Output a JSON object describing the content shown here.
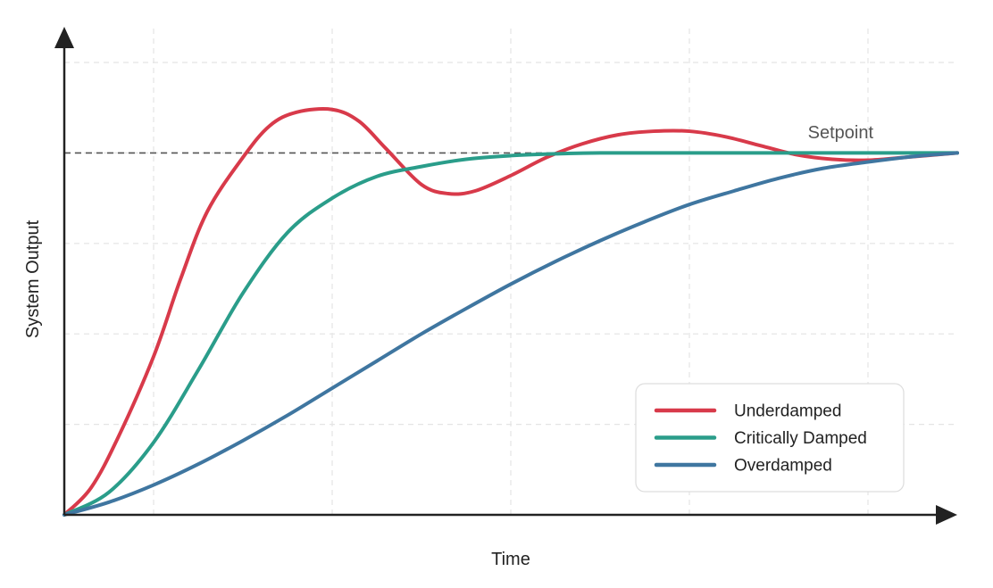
{
  "chart_data": {
    "type": "line",
    "title": "",
    "xlabel": "Time",
    "ylabel": "System Output",
    "xlim": [
      0,
      10
    ],
    "ylim": [
      0,
      5
    ],
    "grid": true,
    "grid_x": [
      1,
      3,
      5,
      7,
      9
    ],
    "grid_y": [
      1,
      2,
      3,
      4,
      5
    ],
    "legend_position": "bottom-right",
    "setpoint": {
      "label": "Setpoint",
      "value": 4
    },
    "series": [
      {
        "name": "Underdamped",
        "color": "#d83a4a",
        "x": [
          0,
          0.3,
          0.6,
          1.0,
          1.3,
          1.6,
          2.0,
          2.3,
          2.6,
          3.0,
          3.3,
          3.6,
          4.0,
          4.3,
          4.6,
          5.0,
          5.4,
          5.8,
          6.2,
          6.6,
          7.0,
          7.4,
          7.8,
          8.2,
          8.6,
          9.0,
          9.4,
          10.0
        ],
        "y": [
          0,
          0.3,
          0.85,
          1.75,
          2.6,
          3.35,
          3.95,
          4.3,
          4.45,
          4.48,
          4.35,
          4.05,
          3.65,
          3.55,
          3.58,
          3.75,
          3.95,
          4.1,
          4.2,
          4.24,
          4.24,
          4.18,
          4.08,
          3.98,
          3.93,
          3.92,
          3.95,
          4.0
        ]
      },
      {
        "name": "Critically Damped",
        "color": "#2a9d8a",
        "x": [
          0,
          0.5,
          1.0,
          1.5,
          2.0,
          2.5,
          3.0,
          3.5,
          4.0,
          4.5,
          5.0,
          5.5,
          6.0,
          7.0,
          8.0,
          9.0,
          10.0
        ],
        "y": [
          0,
          0.25,
          0.8,
          1.6,
          2.45,
          3.12,
          3.5,
          3.74,
          3.85,
          3.93,
          3.97,
          3.99,
          4.0,
          4.0,
          4.0,
          4.0,
          4.0
        ]
      },
      {
        "name": "Overdamped",
        "color": "#3f76a0",
        "x": [
          0,
          0.5,
          1.0,
          1.5,
          2.0,
          2.5,
          3.0,
          3.5,
          4.0,
          4.5,
          5.0,
          5.5,
          6.0,
          6.5,
          7.0,
          7.5,
          8.0,
          8.5,
          9.0,
          9.5,
          10.0
        ],
        "y": [
          0,
          0.14,
          0.33,
          0.56,
          0.82,
          1.1,
          1.4,
          1.7,
          2.0,
          2.28,
          2.55,
          2.8,
          3.03,
          3.24,
          3.43,
          3.58,
          3.72,
          3.83,
          3.9,
          3.96,
          4.0
        ]
      }
    ]
  }
}
